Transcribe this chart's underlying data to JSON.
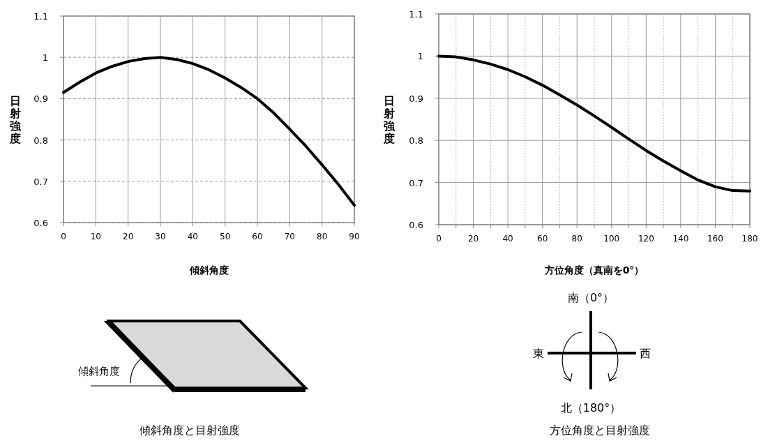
{
  "chart_data": [
    {
      "type": "line",
      "xlabel": "傾斜角度",
      "ylabel": "日射強度",
      "color": "#000000",
      "grid": true,
      "x": [
        0,
        5,
        10,
        15,
        20,
        25,
        30,
        35,
        40,
        45,
        50,
        55,
        60,
        65,
        70,
        75,
        80,
        85,
        90
      ],
      "values": [
        0.915,
        0.94,
        0.962,
        0.978,
        0.99,
        0.997,
        1.0,
        0.995,
        0.985,
        0.97,
        0.95,
        0.927,
        0.9,
        0.866,
        0.826,
        0.785,
        0.74,
        0.693,
        0.642
      ],
      "xlim": [
        0,
        90
      ],
      "ylim": [
        0.6,
        1.1
      ],
      "xticks": [
        0,
        10,
        20,
        30,
        40,
        50,
        60,
        70,
        80,
        90
      ],
      "yticks": [
        0.6,
        0.7,
        0.8,
        0.9,
        1,
        1.1
      ],
      "annotations": [
        "傾斜角度",
        "傾斜角度と目射強度"
      ]
    },
    {
      "type": "line",
      "xlabel": "方位角度（真南を0°）",
      "ylabel": "日射強度",
      "color": "#000000",
      "grid": true,
      "x": [
        0,
        10,
        20,
        30,
        40,
        50,
        60,
        70,
        80,
        90,
        100,
        110,
        120,
        130,
        140,
        150,
        160,
        170,
        180
      ],
      "values": [
        1.0,
        0.998,
        0.991,
        0.981,
        0.968,
        0.951,
        0.931,
        0.908,
        0.884,
        0.858,
        0.831,
        0.803,
        0.776,
        0.751,
        0.728,
        0.706,
        0.69,
        0.681,
        0.68
      ],
      "xlim": [
        0,
        180
      ],
      "ylim": [
        0.6,
        1.1
      ],
      "xticks": [
        0,
        {
          "value": 10,
          "label": null
        },
        20,
        {
          "value": 30,
          "label": null
        },
        40,
        {
          "value": 50,
          "label": null
        },
        60,
        {
          "value": 70,
          "label": null
        },
        80,
        {
          "value": 90,
          "label": null
        },
        100,
        {
          "value": 110,
          "label": null
        },
        120,
        {
          "value": 130,
          "label": null
        },
        140,
        {
          "value": 150,
          "label": null
        },
        160,
        {
          "value": 170,
          "label": null
        },
        180
      ],
      "yticks": [
        0.6,
        0.7,
        0.8,
        0.9,
        1,
        1.1
      ],
      "annotations": [
        "南（0°）",
        "東",
        "西",
        "北（180°）",
        "方位角度と目射強度"
      ]
    }
  ]
}
